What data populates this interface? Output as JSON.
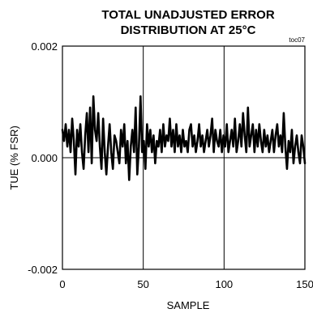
{
  "chart_data": {
    "type": "line",
    "title_line1": "TOTAL UNADJUSTED ERROR",
    "title_line2": "DISTRIBUTION AT 25°C",
    "tag": "toc07",
    "xlabel": "SAMPLE",
    "ylabel": "TUE (% FSR)",
    "xlim": [
      0,
      150
    ],
    "ylim": [
      -0.002,
      0.002
    ],
    "x_ticks": [
      0,
      50,
      100,
      150
    ],
    "x_tick_labels": [
      "0",
      "50",
      "100",
      "150"
    ],
    "y_ticks": [
      0.002,
      0.0,
      -0.002
    ],
    "y_tick_labels": [
      "0.002",
      "0.000",
      "-0.002"
    ],
    "grid": "vertical at x=50,100 and horizontal at y=0",
    "line_color": "#000000",
    "series": [
      {
        "values": [
          0.0005,
          0.0003,
          0.0006,
          0.0002,
          0.0005,
          0.0001,
          0.0007,
          0.0003,
          -0.0003,
          0.0005,
          0.0002,
          0.0006,
          0.0001,
          -0.0002,
          0.0004,
          0.0008,
          0.0001,
          0.0009,
          -0.0001,
          0.0011,
          0.0005,
          0.0003,
          0.0008,
          0.0002,
          -0.0002,
          0.0007,
          0.0001,
          -0.0003,
          0.0002,
          0.0006,
          0.0001,
          -0.0002,
          0.0004,
          0.0003,
          0.0001,
          -0.0001,
          0.0005,
          0.0002,
          0.0006,
          -0.0001,
          0.0003,
          -0.0004,
          0.0002,
          0.0005,
          0.0001,
          0.0009,
          -0.0003,
          0.0002,
          0.0011,
          0.0001,
          0.0003,
          -0.0002,
          0.0006,
          0.0002,
          0.0005,
          0.0001,
          0.0004,
          -0.0001,
          0.0003,
          0.0002,
          0.0005,
          0.0001,
          0.0006,
          0.0002,
          0.0004,
          0.0003,
          0.0007,
          0.0002,
          0.0005,
          0.0001,
          0.0006,
          0.0002,
          0.0004,
          0.0001,
          0.0005,
          0.0002,
          0.0003,
          0.0001,
          0.0005,
          0.0006,
          0.0002,
          0.0004,
          0.0001,
          0.0003,
          0.0006,
          0.0002,
          0.0004,
          0.0001,
          0.0003,
          0.0005,
          0.0002,
          0.0004,
          0.0007,
          0.0001,
          0.0005,
          0.0003,
          0.0002,
          0.0005,
          0.0001,
          0.0004,
          0.0002,
          0.0006,
          0.0001,
          0.0003,
          0.0005,
          0.0002,
          0.0007,
          0.0001,
          0.0003,
          0.0006,
          0.0002,
          0.0008,
          0.0004,
          0.0001,
          0.0009,
          0.0002,
          0.0004,
          0.0006,
          0.0001,
          0.0005,
          0.0002,
          0.0006,
          0.0003,
          0.0001,
          0.0005,
          0.0002,
          0.0004,
          0.0001,
          0.0003,
          0.0005,
          0.0001,
          0.0004,
          0.0006,
          0.0002,
          0.0004,
          0.0001,
          0.0008,
          0.0002,
          -0.0002,
          0.0003,
          0.0001,
          0.0005,
          -0.0001,
          0.0002,
          0.0004,
          0.0001,
          -0.0001,
          0.0004,
          0.0002,
          -0.0001
        ]
      }
    ]
  }
}
